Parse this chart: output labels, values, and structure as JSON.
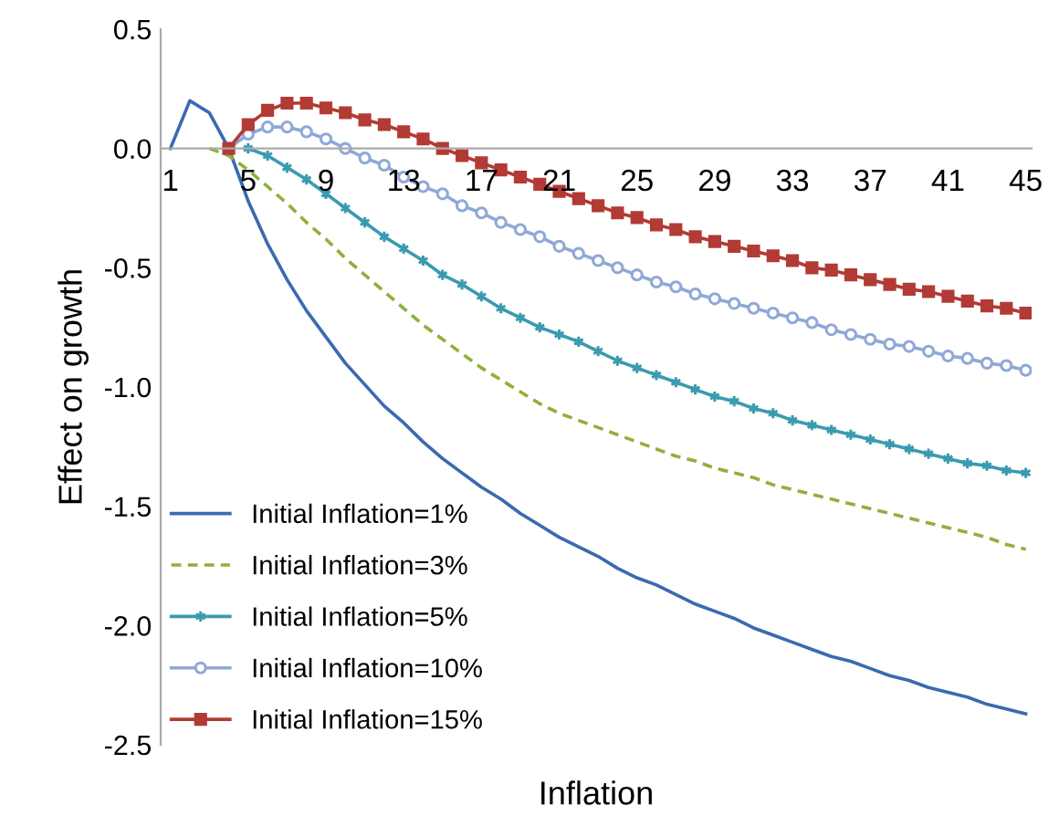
{
  "chart_data": {
    "type": "line",
    "xlabel": "Inflation",
    "ylabel": "Effect on growth",
    "categories": [
      "1",
      null,
      null,
      null,
      "5",
      null,
      null,
      null,
      "9",
      null,
      null,
      null,
      "13",
      null,
      null,
      null,
      "17",
      null,
      null,
      null,
      "21",
      null,
      null,
      null,
      "25",
      null,
      null,
      null,
      "29",
      null,
      null,
      null,
      "33",
      null,
      null,
      null,
      "37",
      null,
      null,
      null,
      "41",
      null,
      null,
      null,
      "45"
    ],
    "ylim": [
      -2.5,
      0.5
    ],
    "yticks": [
      {
        "value": -2.5,
        "label": "-2.5"
      },
      {
        "value": -2.0,
        "label": "-2.0"
      },
      {
        "value": -1.5,
        "label": "-1.5"
      },
      {
        "value": -1.0,
        "label": "-1.0"
      },
      {
        "value": -0.5,
        "label": "-0.5"
      },
      {
        "value": 0.0,
        "label": "0.0"
      },
      {
        "value": 0.5,
        "label": "0.5"
      }
    ],
    "grid": false,
    "legend": "bottom left",
    "series": [
      {
        "name": "Initial Inflation=1%",
        "color": "#3a6ab0",
        "marker": "none",
        "line_style": "solid",
        "values": [
          0,
          0.2,
          0.15,
          0,
          -0.22,
          -0.4,
          -0.55,
          -0.68,
          -0.79,
          -0.9,
          -0.99,
          -1.08,
          -1.15,
          -1.23,
          -1.3,
          -1.36,
          -1.42,
          -1.47,
          -1.53,
          -1.58,
          -1.63,
          -1.67,
          -1.71,
          -1.76,
          -1.8,
          -1.83,
          -1.87,
          -1.91,
          -1.94,
          -1.97,
          -2.01,
          -2.04,
          -2.07,
          -2.1,
          -2.13,
          -2.15,
          -2.18,
          -2.21,
          -2.23,
          -2.26,
          -2.28,
          -2.3,
          -2.33,
          -2.35,
          -2.37
        ]
      },
      {
        "name": "Initial Inflation=3%",
        "color": "#8fb03c",
        "marker": "none",
        "line_style": "dashed",
        "values": [
          null,
          null,
          0,
          -0.03,
          -0.09,
          -0.16,
          -0.23,
          -0.31,
          -0.38,
          -0.46,
          -0.53,
          -0.6,
          -0.67,
          -0.74,
          -0.8,
          -0.86,
          -0.92,
          -0.97,
          -1.02,
          -1.07,
          -1.11,
          -1.14,
          -1.17,
          -1.2,
          -1.23,
          -1.26,
          -1.29,
          -1.31,
          -1.34,
          -1.36,
          -1.38,
          -1.41,
          -1.43,
          -1.45,
          -1.47,
          -1.49,
          -1.51,
          -1.53,
          -1.55,
          -1.57,
          -1.59,
          -1.61,
          -1.63,
          -1.66,
          -1.68
        ]
      },
      {
        "name": "Initial Inflation=5%",
        "color": "#3a9bb0",
        "marker": "cross",
        "line_style": "solid",
        "values": [
          null,
          null,
          null,
          null,
          0,
          -0.03,
          -0.08,
          -0.13,
          -0.19,
          -0.25,
          -0.31,
          -0.37,
          -0.42,
          -0.47,
          -0.53,
          -0.57,
          -0.62,
          -0.67,
          -0.71,
          -0.75,
          -0.78,
          -0.81,
          -0.85,
          -0.89,
          -0.92,
          -0.95,
          -0.98,
          -1.01,
          -1.04,
          -1.06,
          -1.09,
          -1.11,
          -1.14,
          -1.16,
          -1.18,
          -1.2,
          -1.22,
          -1.24,
          -1.26,
          -1.28,
          -1.3,
          -1.32,
          -1.33,
          -1.35,
          -1.36
        ]
      },
      {
        "name": "Initial Inflation=10%",
        "color": "#8fa8d8",
        "marker": "circle",
        "line_style": "solid",
        "values": [
          null,
          null,
          null,
          0,
          0.06,
          0.09,
          0.09,
          0.07,
          0.04,
          0.0,
          -0.04,
          -0.07,
          -0.12,
          -0.16,
          -0.19,
          -0.24,
          -0.27,
          -0.31,
          -0.34,
          -0.37,
          -0.41,
          -0.44,
          -0.47,
          -0.5,
          -0.53,
          -0.56,
          -0.58,
          -0.61,
          -0.63,
          -0.65,
          -0.67,
          -0.69,
          -0.71,
          -0.73,
          -0.76,
          -0.78,
          -0.8,
          -0.82,
          -0.83,
          -0.85,
          -0.87,
          -0.88,
          -0.9,
          -0.91,
          -0.93
        ]
      },
      {
        "name": "Initial Inflation=15%",
        "color": "#b23b35",
        "marker": "square",
        "line_style": "solid",
        "values": [
          null,
          null,
          null,
          0,
          0.1,
          0.16,
          0.19,
          0.19,
          0.17,
          0.15,
          0.12,
          0.1,
          0.07,
          0.04,
          0.0,
          -0.03,
          -0.06,
          -0.09,
          -0.12,
          -0.15,
          -0.18,
          -0.21,
          -0.24,
          -0.27,
          -0.29,
          -0.32,
          -0.34,
          -0.37,
          -0.39,
          -0.41,
          -0.43,
          -0.45,
          -0.47,
          -0.5,
          -0.51,
          -0.53,
          -0.55,
          -0.57,
          -0.59,
          -0.6,
          -0.62,
          -0.64,
          -0.66,
          -0.67,
          -0.69
        ]
      }
    ]
  }
}
